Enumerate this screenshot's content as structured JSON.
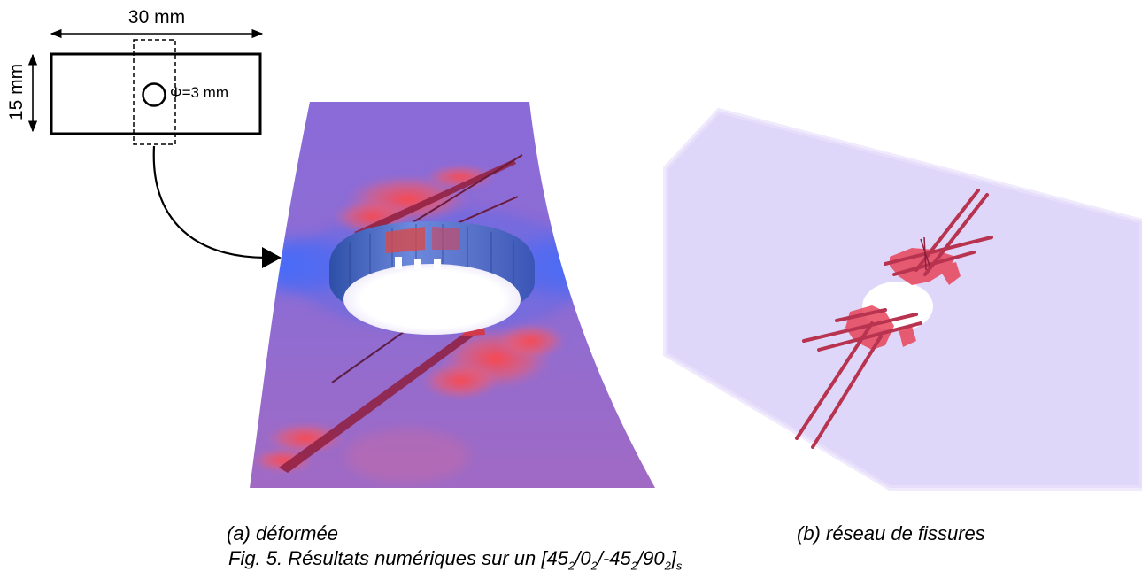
{
  "schematic": {
    "width_label": "30 mm",
    "height_label": "15 mm",
    "hole_label": "Φ=3 mm"
  },
  "panels": [
    {
      "label": "(a) déformée"
    },
    {
      "label": "(b) réseau de fissures"
    }
  ],
  "figure_caption": {
    "prefix": "Fig. 5. Résultats numériques sur un [",
    "layup": [
      {
        "base": "45",
        "sub": "2"
      },
      {
        "base": "/0",
        "sub": "2"
      },
      {
        "base": "/-45",
        "sub": "2"
      },
      {
        "base": "/90",
        "sub": "2"
      }
    ],
    "suffix": "]",
    "suffix_sub": "s"
  },
  "colors": {
    "plate_base": "#8f6fd6",
    "compression_blue": "#3f6dff",
    "damage_red": "#ff4a4a",
    "crack_dark": "#8e1f3e",
    "light_plate": "#d9d0f7",
    "crack_red": "#b8334f"
  }
}
